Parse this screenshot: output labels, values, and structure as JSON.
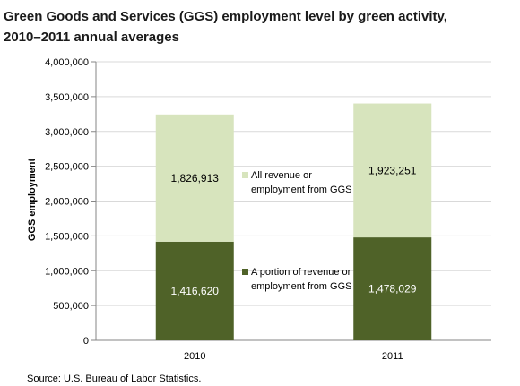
{
  "chart_data": {
    "type": "bar",
    "stacked": true,
    "title_line1": "Green Goods and Services (GGS) employment level by green activity,",
    "title_line2": "2010–2011 annual averages",
    "ylabel": "GGS employment",
    "xlabel": "",
    "categories": [
      "2010",
      "2011"
    ],
    "ylim": [
      0,
      4000000
    ],
    "yticks": [
      0,
      500000,
      1000000,
      1500000,
      2000000,
      2500000,
      3000000,
      3500000,
      4000000
    ],
    "ytick_labels": [
      "0",
      "500,000",
      "1,000,000",
      "1,500,000",
      "2,000,000",
      "2,500,000",
      "3,000,000",
      "3,500,000",
      "4,000,000"
    ],
    "series": [
      {
        "name": "A portion of revenue or employment from GGS",
        "legend_line1": "A portion of revenue  or",
        "legend_line2": "employment from GGS",
        "color": "#4f6228",
        "label_color": "#ffffff",
        "values": [
          1416620,
          1478029
        ],
        "value_labels": [
          "1,416,620",
          "1,478,029"
        ]
      },
      {
        "name": "All revenue or employment from GGS",
        "legend_line1": "All revenue or",
        "legend_line2": "employment from GGS",
        "color": "#d7e4bd",
        "label_color": "#000000",
        "values": [
          1826913,
          1923251
        ],
        "value_labels": [
          "1,826,913",
          "1,923,251"
        ]
      }
    ],
    "grid": true,
    "source": "Source:  U.S. Bureau of Labor Statistics."
  }
}
